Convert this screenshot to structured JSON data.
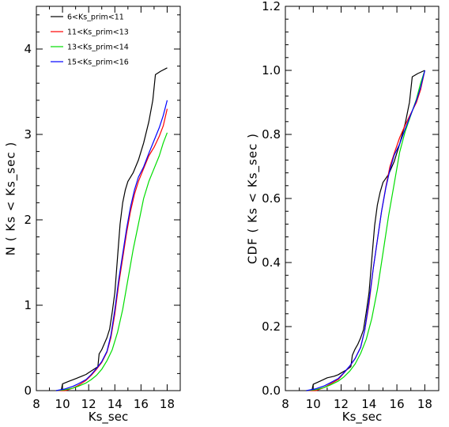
{
  "chart_data": [
    {
      "type": "line",
      "xlabel": "Ks_sec",
      "ylabel": "N ( Ks < Ks_sec )",
      "xlim": [
        8,
        19
      ],
      "ylim": [
        0,
        4.5
      ],
      "xticks": [
        "8",
        "10",
        "12",
        "14",
        "16",
        "18"
      ],
      "yticks": [
        "0",
        "1",
        "2",
        "3",
        "4"
      ],
      "legend_position": "top-left",
      "series": [
        {
          "name": "6<Ks_prim<11",
          "color": "#000000",
          "points": [
            [
              9.9,
              0.0
            ],
            [
              10.0,
              0.08
            ],
            [
              10.5,
              0.11
            ],
            [
              11.0,
              0.14
            ],
            [
              11.5,
              0.17
            ],
            [
              11.8,
              0.19
            ],
            [
              12.0,
              0.21
            ],
            [
              12.4,
              0.25
            ],
            [
              12.7,
              0.28
            ],
            [
              12.8,
              0.43
            ],
            [
              13.0,
              0.48
            ],
            [
              13.2,
              0.55
            ],
            [
              13.4,
              0.62
            ],
            [
              13.6,
              0.72
            ],
            [
              13.8,
              0.92
            ],
            [
              14.0,
              1.15
            ],
            [
              14.2,
              1.55
            ],
            [
              14.4,
              1.95
            ],
            [
              14.6,
              2.2
            ],
            [
              14.8,
              2.35
            ],
            [
              15.0,
              2.45
            ],
            [
              15.4,
              2.55
            ],
            [
              15.8,
              2.7
            ],
            [
              16.2,
              2.9
            ],
            [
              16.6,
              3.15
            ],
            [
              16.9,
              3.4
            ],
            [
              17.1,
              3.7
            ],
            [
              17.5,
              3.74
            ],
            [
              18.0,
              3.78
            ]
          ]
        },
        {
          "name": "11<Ks_prim<13",
          "color": "#ff0000",
          "points": [
            [
              9.5,
              0.0
            ],
            [
              10.2,
              0.0
            ],
            [
              10.8,
              0.03
            ],
            [
              11.2,
              0.06
            ],
            [
              11.8,
              0.12
            ],
            [
              12.2,
              0.18
            ],
            [
              12.6,
              0.25
            ],
            [
              13.0,
              0.33
            ],
            [
              13.4,
              0.45
            ],
            [
              13.7,
              0.62
            ],
            [
              14.0,
              0.9
            ],
            [
              14.3,
              1.25
            ],
            [
              14.6,
              1.55
            ],
            [
              14.9,
              1.85
            ],
            [
              15.2,
              2.1
            ],
            [
              15.5,
              2.3
            ],
            [
              15.8,
              2.45
            ],
            [
              16.2,
              2.6
            ],
            [
              16.6,
              2.75
            ],
            [
              17.0,
              2.85
            ],
            [
              17.4,
              2.98
            ],
            [
              17.7,
              3.1
            ],
            [
              18.0,
              3.3
            ]
          ]
        },
        {
          "name": "13<Ks_prim<14",
          "color": "#00dd00",
          "points": [
            [
              9.5,
              0.0
            ],
            [
              10.2,
              0.01
            ],
            [
              10.8,
              0.03
            ],
            [
              11.2,
              0.05
            ],
            [
              11.8,
              0.09
            ],
            [
              12.2,
              0.13
            ],
            [
              12.6,
              0.18
            ],
            [
              13.0,
              0.25
            ],
            [
              13.4,
              0.35
            ],
            [
              13.8,
              0.48
            ],
            [
              14.2,
              0.68
            ],
            [
              14.6,
              0.95
            ],
            [
              15.0,
              1.3
            ],
            [
              15.4,
              1.65
            ],
            [
              15.8,
              1.95
            ],
            [
              16.2,
              2.25
            ],
            [
              16.6,
              2.45
            ],
            [
              17.0,
              2.6
            ],
            [
              17.4,
              2.75
            ],
            [
              17.7,
              2.9
            ],
            [
              18.0,
              3.02
            ]
          ]
        },
        {
          "name": "15<Ks_prim<16",
          "color": "#0000ff",
          "points": [
            [
              9.5,
              0.0
            ],
            [
              10.2,
              0.02
            ],
            [
              10.8,
              0.05
            ],
            [
              11.2,
              0.08
            ],
            [
              11.8,
              0.13
            ],
            [
              12.2,
              0.19
            ],
            [
              12.6,
              0.26
            ],
            [
              13.0,
              0.34
            ],
            [
              13.4,
              0.46
            ],
            [
              13.7,
              0.65
            ],
            [
              14.0,
              0.95
            ],
            [
              14.3,
              1.3
            ],
            [
              14.6,
              1.6
            ],
            [
              14.9,
              1.9
            ],
            [
              15.2,
              2.15
            ],
            [
              15.5,
              2.35
            ],
            [
              15.8,
              2.5
            ],
            [
              16.2,
              2.62
            ],
            [
              16.6,
              2.78
            ],
            [
              17.0,
              2.93
            ],
            [
              17.4,
              3.08
            ],
            [
              17.7,
              3.22
            ],
            [
              18.0,
              3.4
            ]
          ]
        }
      ]
    },
    {
      "type": "line",
      "xlabel": "Ks_sec",
      "ylabel": "CDF ( Ks < Ks_sec )",
      "xlim": [
        8,
        19
      ],
      "ylim": [
        0,
        1.2
      ],
      "xticks": [
        "8",
        "10",
        "12",
        "14",
        "16",
        "18"
      ],
      "yticks": [
        "0.0",
        "0.2",
        "0.4",
        "0.6",
        "0.8",
        "1.0",
        "1.2"
      ],
      "series": [
        {
          "name": "6<Ks_prim<11",
          "color": "#000000",
          "points": [
            [
              9.9,
              0.0
            ],
            [
              10.0,
              0.02
            ],
            [
              10.5,
              0.03
            ],
            [
              11.0,
              0.04
            ],
            [
              11.5,
              0.045
            ],
            [
              11.8,
              0.05
            ],
            [
              12.0,
              0.055
            ],
            [
              12.4,
              0.065
            ],
            [
              12.7,
              0.075
            ],
            [
              12.8,
              0.11
            ],
            [
              13.0,
              0.13
            ],
            [
              13.2,
              0.145
            ],
            [
              13.4,
              0.165
            ],
            [
              13.6,
              0.19
            ],
            [
              13.8,
              0.245
            ],
            [
              14.0,
              0.305
            ],
            [
              14.2,
              0.41
            ],
            [
              14.4,
              0.515
            ],
            [
              14.6,
              0.58
            ],
            [
              14.8,
              0.62
            ],
            [
              15.0,
              0.65
            ],
            [
              15.4,
              0.675
            ],
            [
              15.8,
              0.715
            ],
            [
              16.2,
              0.77
            ],
            [
              16.6,
              0.835
            ],
            [
              16.9,
              0.9
            ],
            [
              17.1,
              0.98
            ],
            [
              17.5,
              0.99
            ],
            [
              18.0,
              1.0
            ]
          ]
        },
        {
          "name": "11<Ks_prim<13",
          "color": "#ff0000",
          "points": [
            [
              9.5,
              0.0
            ],
            [
              10.2,
              0.0
            ],
            [
              10.8,
              0.01
            ],
            [
              11.2,
              0.02
            ],
            [
              11.8,
              0.035
            ],
            [
              12.2,
              0.055
            ],
            [
              12.6,
              0.075
            ],
            [
              13.0,
              0.1
            ],
            [
              13.4,
              0.135
            ],
            [
              13.7,
              0.19
            ],
            [
              14.0,
              0.27
            ],
            [
              14.3,
              0.38
            ],
            [
              14.6,
              0.47
            ],
            [
              14.9,
              0.56
            ],
            [
              15.2,
              0.635
            ],
            [
              15.5,
              0.7
            ],
            [
              15.8,
              0.74
            ],
            [
              16.2,
              0.79
            ],
            [
              16.6,
              0.83
            ],
            [
              17.0,
              0.865
            ],
            [
              17.4,
              0.9
            ],
            [
              17.7,
              0.94
            ],
            [
              18.0,
              1.0
            ]
          ]
        },
        {
          "name": "13<Ks_prim<14",
          "color": "#00dd00",
          "points": [
            [
              9.5,
              0.0
            ],
            [
              10.2,
              0.003
            ],
            [
              10.8,
              0.01
            ],
            [
              11.2,
              0.017
            ],
            [
              11.8,
              0.03
            ],
            [
              12.2,
              0.043
            ],
            [
              12.6,
              0.06
            ],
            [
              13.0,
              0.083
            ],
            [
              13.4,
              0.116
            ],
            [
              13.8,
              0.16
            ],
            [
              14.2,
              0.225
            ],
            [
              14.6,
              0.315
            ],
            [
              15.0,
              0.43
            ],
            [
              15.4,
              0.545
            ],
            [
              15.8,
              0.645
            ],
            [
              16.2,
              0.745
            ],
            [
              16.6,
              0.81
            ],
            [
              17.0,
              0.86
            ],
            [
              17.4,
              0.91
            ],
            [
              17.7,
              0.96
            ],
            [
              18.0,
              1.0
            ]
          ]
        },
        {
          "name": "15<Ks_prim<16",
          "color": "#0000ff",
          "points": [
            [
              9.5,
              0.0
            ],
            [
              10.2,
              0.006
            ],
            [
              10.8,
              0.015
            ],
            [
              11.2,
              0.024
            ],
            [
              11.8,
              0.038
            ],
            [
              12.2,
              0.056
            ],
            [
              12.6,
              0.076
            ],
            [
              13.0,
              0.1
            ],
            [
              13.4,
              0.135
            ],
            [
              13.7,
              0.19
            ],
            [
              14.0,
              0.28
            ],
            [
              14.3,
              0.38
            ],
            [
              14.6,
              0.47
            ],
            [
              14.9,
              0.56
            ],
            [
              15.2,
              0.632
            ],
            [
              15.5,
              0.69
            ],
            [
              15.8,
              0.735
            ],
            [
              16.2,
              0.77
            ],
            [
              16.6,
              0.818
            ],
            [
              17.0,
              0.862
            ],
            [
              17.4,
              0.906
            ],
            [
              17.7,
              0.947
            ],
            [
              18.0,
              1.0
            ]
          ]
        }
      ]
    }
  ]
}
